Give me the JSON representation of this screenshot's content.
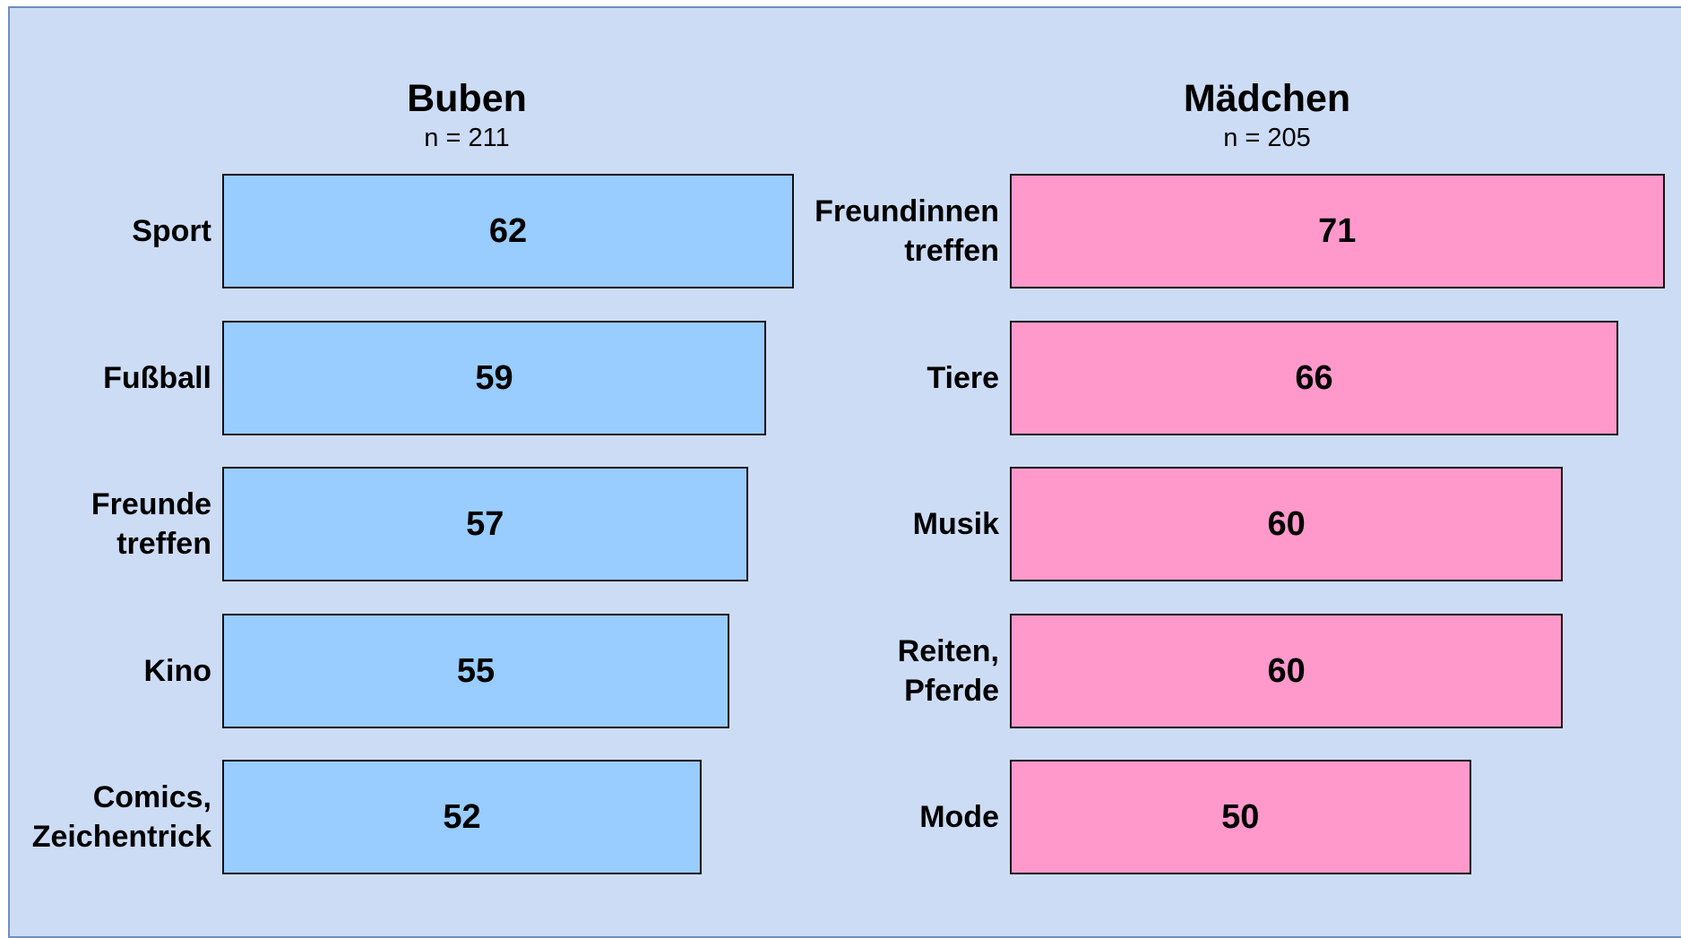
{
  "chart_data": [
    {
      "type": "bar",
      "title": "Buben",
      "subtitle": "n = 211",
      "categories": [
        "Sport",
        "Fußball",
        "Freunde\ntreffen",
        "Kino",
        "Comics,\nZeichentrick"
      ],
      "values": [
        62,
        59,
        57,
        55,
        52
      ],
      "color": "#99ccff"
    },
    {
      "type": "bar",
      "title": "Mädchen",
      "subtitle": "n = 205",
      "categories": [
        "Freundinnen\ntreffen",
        "Tiere",
        "Musik",
        "Reiten,\nPferde",
        "Mode"
      ],
      "values": [
        71,
        66,
        60,
        60,
        50
      ],
      "color": "#ff99cc"
    }
  ]
}
